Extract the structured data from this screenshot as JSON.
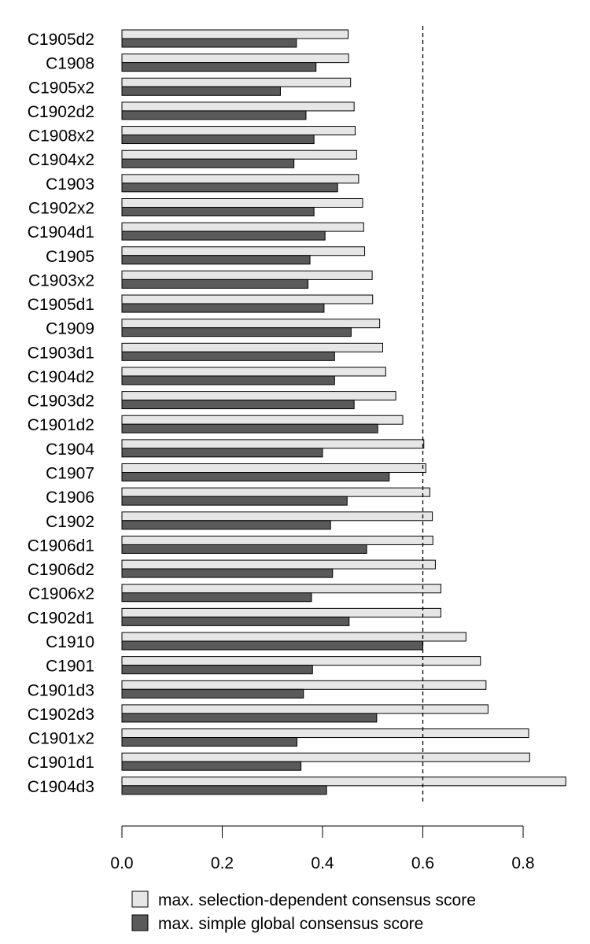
{
  "chart_data": {
    "type": "bar",
    "orientation": "horizontal",
    "title": "",
    "xlabel": "",
    "ylabel": "",
    "xlim": [
      0,
      0.885
    ],
    "xticks": [
      0.0,
      0.2,
      0.4,
      0.6,
      0.8
    ],
    "xtick_labels": [
      "0.0",
      "0.2",
      "0.4",
      "0.6",
      "0.8"
    ],
    "reference_line": {
      "x": 0.6,
      "style": "dashed"
    },
    "grid": false,
    "legend_position": "bottom",
    "categories": [
      "C1905d2",
      "C1908",
      "C1905x2",
      "C1902d2",
      "C1908x2",
      "C1904x2",
      "C1903",
      "C1902x2",
      "C1904d1",
      "C1905",
      "C1903x2",
      "C1905d1",
      "C1909",
      "C1903d1",
      "C1904d2",
      "C1903d2",
      "C1901d2",
      "C1904",
      "C1907",
      "C1906",
      "C1902",
      "C1906d1",
      "C1906d2",
      "C1906x2",
      "C1902d1",
      "C1910",
      "C1901",
      "C1901d3",
      "C1902d3",
      "C1901x2",
      "C1901d1",
      "C1904d3"
    ],
    "series": [
      {
        "name": "max. selection-dependent consensus score",
        "color": "#e6e6e6",
        "values": [
          0.451,
          0.452,
          0.456,
          0.463,
          0.465,
          0.468,
          0.472,
          0.48,
          0.482,
          0.484,
          0.499,
          0.5,
          0.514,
          0.52,
          0.526,
          0.546,
          0.56,
          0.602,
          0.606,
          0.614,
          0.619,
          0.62,
          0.625,
          0.636,
          0.636,
          0.686,
          0.715,
          0.726,
          0.73,
          0.811,
          0.813,
          0.885
        ]
      },
      {
        "name": "max. simple global consensus score",
        "color": "#5a5a5a",
        "values": [
          0.348,
          0.387,
          0.316,
          0.367,
          0.383,
          0.343,
          0.43,
          0.383,
          0.405,
          0.375,
          0.371,
          0.403,
          0.457,
          0.424,
          0.424,
          0.463,
          0.51,
          0.4,
          0.533,
          0.449,
          0.416,
          0.488,
          0.42,
          0.378,
          0.453,
          0.6,
          0.38,
          0.362,
          0.508,
          0.349,
          0.357,
          0.408
        ]
      }
    ]
  }
}
